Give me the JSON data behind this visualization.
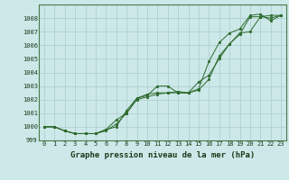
{
  "x": [
    0,
    1,
    2,
    3,
    4,
    5,
    6,
    7,
    8,
    9,
    10,
    11,
    12,
    13,
    14,
    15,
    16,
    17,
    18,
    19,
    20,
    21,
    22,
    23
  ],
  "line1": [
    1000.0,
    1000.0,
    999.7,
    999.5,
    999.5,
    999.5,
    999.7,
    1000.2,
    1001.0,
    1002.0,
    1002.2,
    1002.4,
    1002.5,
    1002.5,
    1002.5,
    1002.7,
    1003.5,
    1005.2,
    1006.1,
    1006.8,
    1008.1,
    1008.1,
    1008.0,
    1008.2
  ],
  "line2": [
    1000.0,
    1000.0,
    999.7,
    999.5,
    999.5,
    999.5,
    999.8,
    1000.5,
    1001.0,
    1002.1,
    1002.3,
    1003.0,
    1003.0,
    1002.5,
    1002.5,
    1003.3,
    1003.8,
    1005.0,
    1006.1,
    1006.9,
    1007.0,
    1008.1,
    1008.2,
    1008.2
  ],
  "line3": [
    1000.0,
    1000.0,
    999.7,
    999.5,
    999.5,
    999.5,
    999.8,
    1000.0,
    1001.2,
    1002.1,
    1002.4,
    1002.5,
    1002.5,
    1002.6,
    1002.5,
    1002.8,
    1004.8,
    1006.2,
    1006.9,
    1007.2,
    1008.2,
    1008.3,
    1007.8,
    1008.2
  ],
  "bg_color": "#cce8e8",
  "grid_color": "#aacccc",
  "line_color": "#2d6a2d",
  "marker_color": "#2d6a2d",
  "xlabel": "Graphe pression niveau de la mer (hPa)",
  "ylim": [
    999,
    1009
  ],
  "xlim": [
    -0.5,
    23.5
  ],
  "yticks": [
    999,
    1000,
    1001,
    1002,
    1003,
    1004,
    1005,
    1006,
    1007,
    1008
  ],
  "xticks": [
    0,
    1,
    2,
    3,
    4,
    5,
    6,
    7,
    8,
    9,
    10,
    11,
    12,
    13,
    14,
    15,
    16,
    17,
    18,
    19,
    20,
    21,
    22,
    23
  ],
  "tick_fontsize": 5.0,
  "ylabel_fontsize": 5.0,
  "xlabel_fontsize": 6.5
}
